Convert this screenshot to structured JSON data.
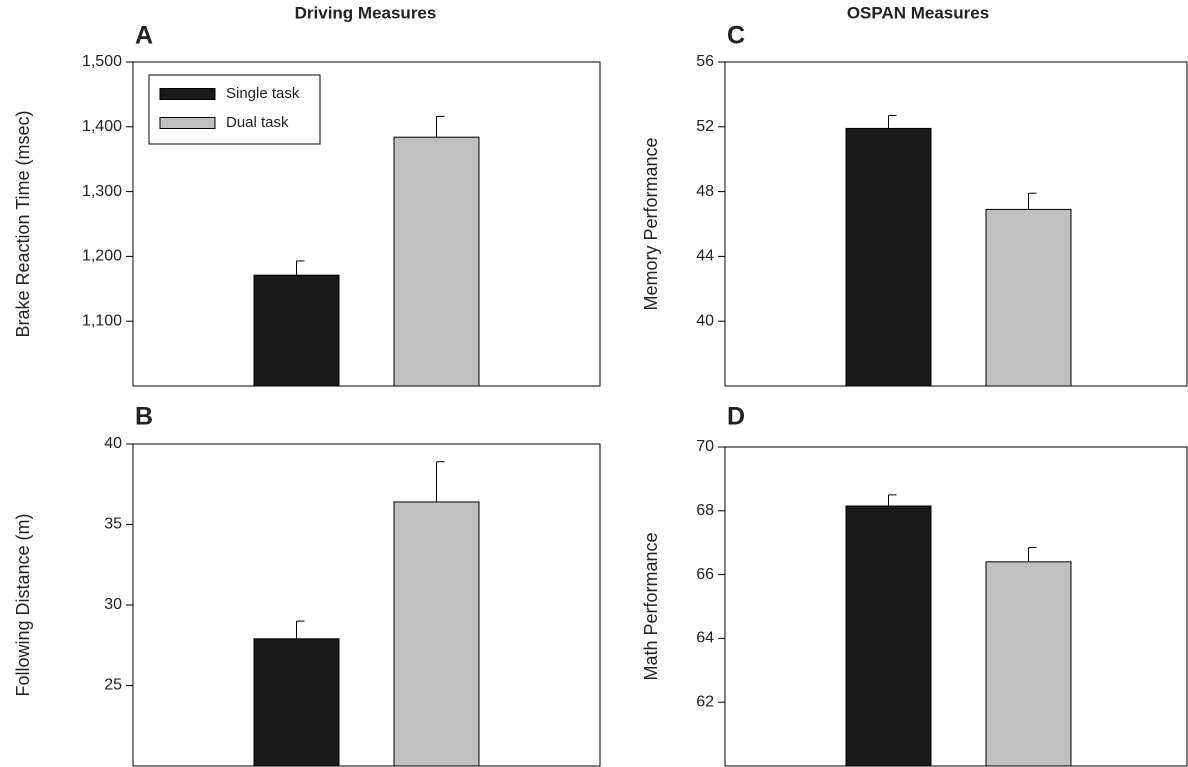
{
  "chart_data": [
    {
      "type": "bar",
      "panel": "A",
      "title": "Driving Measures",
      "ylabel": "Brake Reaction Time (msec)",
      "ylim": [
        1000,
        1500
      ],
      "yticks": [
        {
          "value": 1100,
          "label": "1,100"
        },
        {
          "value": 1200,
          "label": "1,200"
        },
        {
          "value": 1300,
          "label": "1,300"
        },
        {
          "value": 1400,
          "label": "1,400"
        },
        {
          "value": 1500,
          "label": "1,500"
        }
      ],
      "legend": "upper left",
      "series": [
        {
          "name": "Single task",
          "color": "#1a1a1a",
          "values": [
            1171
          ],
          "errors": [
            22
          ]
        },
        {
          "name": "Dual task",
          "color": "#c0c0c0",
          "values": [
            1384
          ],
          "errors": [
            32
          ]
        }
      ]
    },
    {
      "type": "bar",
      "panel": "B",
      "ylabel": "Following Distance (m)",
      "ylim": [
        20,
        40
      ],
      "yticks": [
        25,
        30,
        35,
        40
      ],
      "series": [
        {
          "color": "#1a1a1a",
          "values": [
            27.9
          ],
          "errors": [
            1.1
          ]
        },
        {
          "color": "#c0c0c0",
          "values": [
            36.4
          ],
          "errors": [
            2.5
          ]
        }
      ]
    },
    {
      "type": "bar",
      "panel": "C",
      "title": "OSPAN Measures",
      "ylabel": "Memory Performance",
      "ylim": [
        36,
        56
      ],
      "yticks": [
        40,
        44,
        48,
        52,
        56
      ],
      "series": [
        {
          "color": "#1a1a1a",
          "values": [
            51.9
          ],
          "errors": [
            0.8
          ]
        },
        {
          "color": "#c0c0c0",
          "values": [
            46.9
          ],
          "errors": [
            1.0
          ]
        }
      ]
    },
    {
      "type": "bar",
      "panel": "D",
      "ylabel": "Math Performance",
      "ylim": [
        60,
        70
      ],
      "yticks": [
        62,
        64,
        66,
        68,
        70
      ],
      "series": [
        {
          "color": "#1a1a1a",
          "values": [
            68.15
          ],
          "errors": [
            0.35
          ]
        },
        {
          "color": "#c0c0c0",
          "values": [
            66.4
          ],
          "errors": [
            0.45
          ]
        }
      ]
    }
  ]
}
